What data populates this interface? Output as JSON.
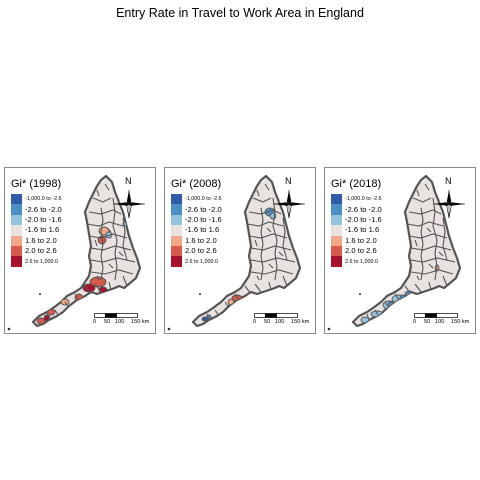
{
  "title": "Entry Rate in Travel to Work Area in England",
  "legend_classes": [
    {
      "label": "-1,000.0 to -2.6",
      "color": "#2b5da8",
      "small": true
    },
    {
      "label": "-2.6 to -2.0",
      "color": "#4e8fc5",
      "small": false
    },
    {
      "label": "-2.0 to -1.6",
      "color": "#92c2dd",
      "small": false
    },
    {
      "label": "-1.6 to 1.6",
      "color": "#e8e3e0",
      "small": false
    },
    {
      "label": "1.6 to 2.0",
      "color": "#f1a685",
      "small": false
    },
    {
      "label": "2.0 to 2.6",
      "color": "#d55a4c",
      "small": false
    },
    {
      "label": "2.6 to 1,000.0",
      "color": "#a8112b",
      "small": true
    }
  ],
  "panels": [
    {
      "title": "Gi* (1998)",
      "north_label": "N"
    },
    {
      "title": "Gi* (2008)",
      "north_label": "N"
    },
    {
      "title": "Gi* (2018)",
      "north_label": "N"
    }
  ],
  "scale_labels": [
    "0",
    "50",
    "100",
    "150 km"
  ],
  "colors": {
    "border": "#555555",
    "neutral": "#e8e3e0"
  }
}
